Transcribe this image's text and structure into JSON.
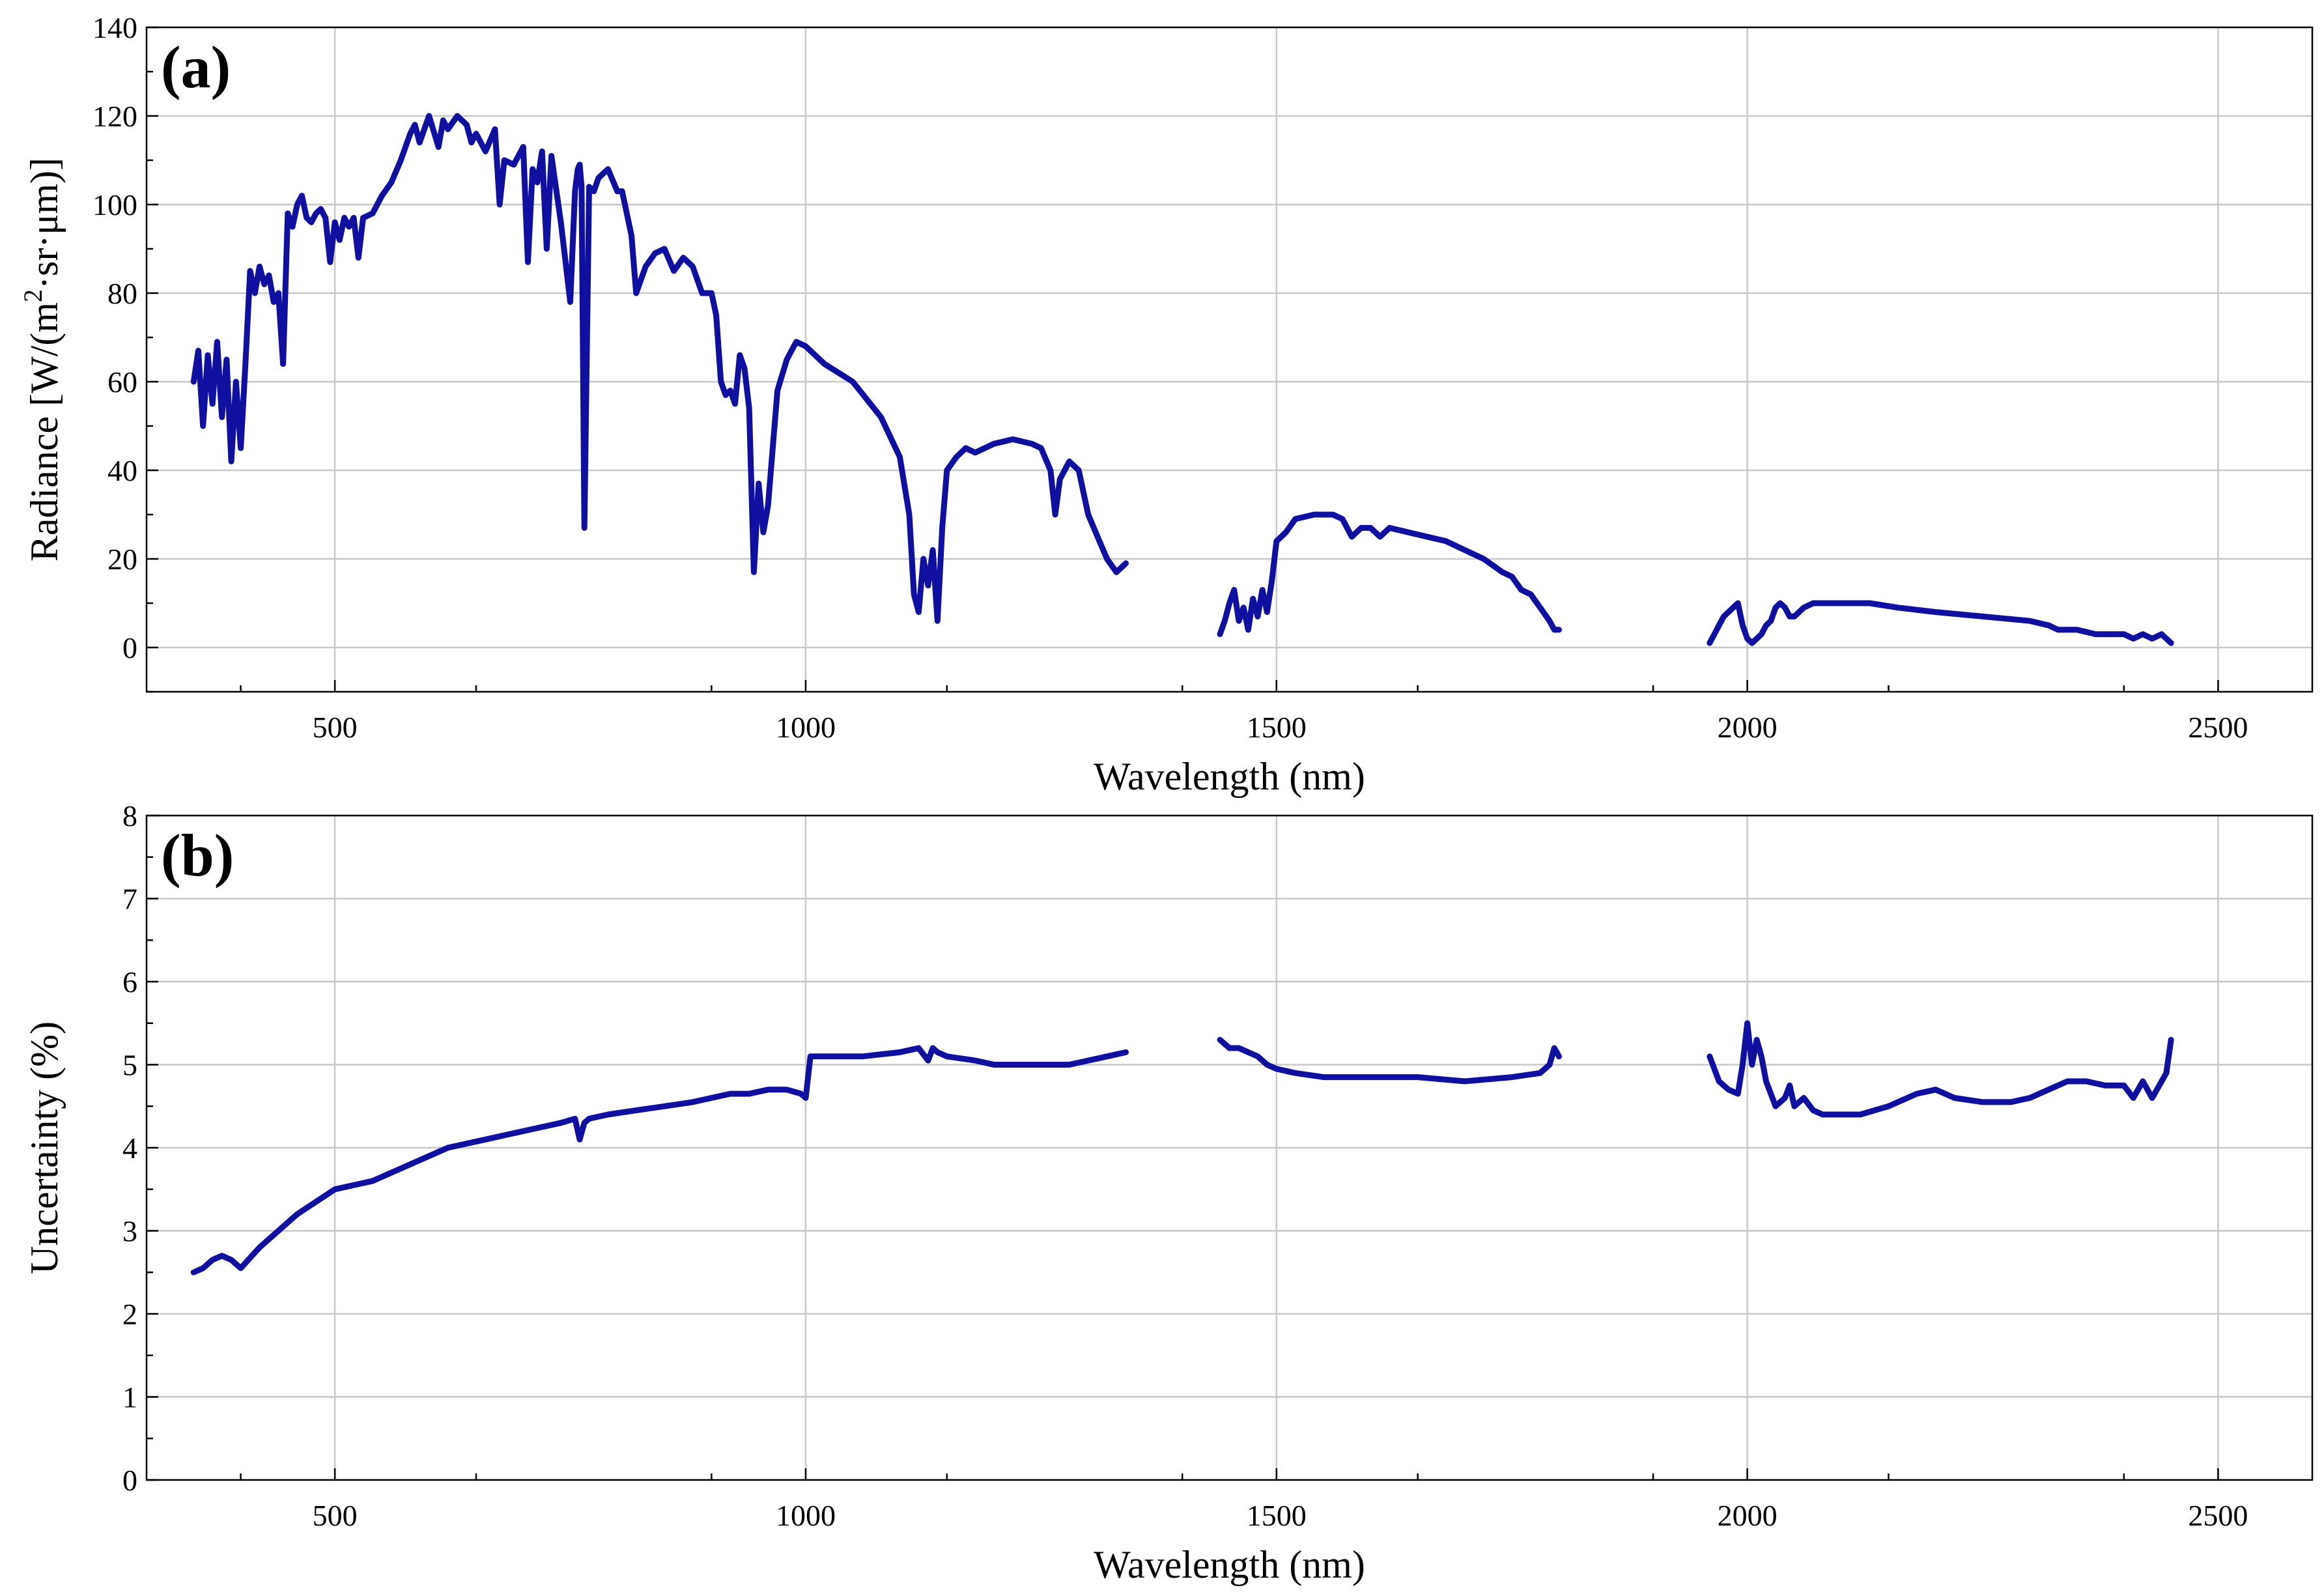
{
  "colors": {
    "series": "#1010a0",
    "grid": "#c8c8c8",
    "axis": "#000000"
  },
  "chart_data": [
    {
      "type": "line",
      "panel_label": "(a)",
      "title": "",
      "xlabel": "Wavelength (nm)",
      "ylabel": "Radiance [W/(m",
      "ylabel_sup": "2",
      "ylabel_rest": "·sr·μm)]",
      "xlim": [
        300,
        2600
      ],
      "ylim": [
        -10,
        140
      ],
      "xticks": [
        500,
        1000,
        1500,
        2000,
        2500
      ],
      "yticks": [
        0,
        20,
        40,
        60,
        80,
        100,
        120,
        140
      ],
      "grid": true,
      "series": [
        {
          "segments": [
            {
              "x": [
                350,
                355,
                360,
                365,
                370,
                375,
                380,
                385,
                390,
                395,
                400,
                405,
                410,
                415,
                420,
                425,
                430,
                435,
                440,
                445,
                450,
                455,
                460,
                465,
                470,
                475,
                480,
                485,
                490,
                495,
                500,
                505,
                510,
                515,
                520,
                525,
                530,
                540,
                550,
                560,
                570,
                580,
                585,
                590,
                600,
                610,
                615,
                620,
                630,
                640,
                645,
                650,
                660,
                670,
                675,
                680,
                690,
                700,
                705,
                710,
                715,
                720,
                725,
                730,
                740,
                750,
                755,
                758,
                760,
                762,
                765,
                770,
                775,
                780,
                790,
                800,
                805,
                810,
                815,
                820,
                830,
                840,
                850,
                860,
                870,
                880,
                890,
                900,
                905,
                910,
                915,
                920,
                925,
                930,
                935,
                940,
                945,
                950,
                955,
                960,
                970,
                980,
                990,
                1000,
                1020,
                1050,
                1080,
                1100,
                1110,
                1115,
                1120,
                1125,
                1130,
                1135,
                1140,
                1145,
                1150,
                1160,
                1170,
                1180,
                1200,
                1220,
                1240,
                1250,
                1260,
                1265,
                1270,
                1280,
                1290,
                1300,
                1310,
                1320,
                1330,
                1340
              ],
              "y": [
                60,
                67,
                50,
                66,
                55,
                69,
                52,
                65,
                42,
                60,
                45,
                64,
                85,
                80,
                86,
                82,
                84,
                78,
                80,
                64,
                98,
                95,
                100,
                102,
                97,
                96,
                98,
                99,
                97,
                87,
                96,
                92,
                97,
                95,
                97,
                88,
                97,
                98,
                102,
                105,
                110,
                116,
                118,
                114,
                120,
                113,
                119,
                117,
                120,
                118,
                114,
                116,
                112,
                117,
                100,
                110,
                109,
                113,
                87,
                108,
                105,
                112,
                90,
                111,
                96,
                78,
                103,
                108,
                109,
                104,
                27,
                104,
                103,
                106,
                108,
                103,
                103,
                98,
                93,
                80,
                86,
                89,
                90,
                85,
                88,
                86,
                80,
                80,
                75,
                60,
                57,
                58,
                55,
                66,
                63,
                54,
                17,
                37,
                26,
                32,
                58,
                65,
                69,
                68,
                64,
                60,
                52,
                43,
                30,
                12,
                8,
                20,
                14,
                22,
                6,
                27,
                40,
                43,
                45,
                44,
                46,
                47,
                46,
                45,
                40,
                30,
                38,
                42,
                40,
                30,
                25,
                20,
                17,
                19
              ]
            },
            {
              "x": [
                1440,
                1445,
                1450,
                1455,
                1460,
                1465,
                1470,
                1475,
                1480,
                1485,
                1490,
                1495,
                1500,
                1510,
                1520,
                1540,
                1560,
                1570,
                1580,
                1590,
                1600,
                1610,
                1620,
                1640,
                1660,
                1680,
                1700,
                1720,
                1740,
                1750,
                1760,
                1770,
                1780,
                1790,
                1795,
                1800
              ],
              "y": [
                3,
                6,
                10,
                13,
                6,
                9,
                4,
                11,
                7,
                13,
                8,
                15,
                24,
                26,
                29,
                30,
                30,
                29,
                25,
                27,
                27,
                25,
                27,
                26,
                25,
                24,
                22,
                20,
                17,
                16,
                13,
                12,
                9,
                6,
                4,
                4
              ]
            },
            {
              "x": [
                1960,
                1965,
                1970,
                1975,
                1980,
                1985,
                1990,
                1995,
                2000,
                2005,
                2010,
                2015,
                2020,
                2025,
                2030,
                2035,
                2040,
                2045,
                2050,
                2060,
                2070,
                2080,
                2100,
                2130,
                2160,
                2200,
                2250,
                2300,
                2320,
                2330,
                2350,
                2370,
                2400,
                2410,
                2420,
                2430,
                2440,
                2450
              ],
              "y": [
                1,
                3,
                5,
                7,
                8,
                9,
                10,
                5,
                2,
                1,
                2,
                3,
                5,
                6,
                9,
                10,
                9,
                7,
                7,
                9,
                10,
                10,
                10,
                10,
                9,
                8,
                7,
                6,
                5,
                4,
                4,
                3,
                3,
                2,
                3,
                2,
                3,
                1
              ]
            }
          ]
        }
      ]
    },
    {
      "type": "line",
      "panel_label": "(b)",
      "title": "",
      "xlabel": "Wavelength (nm)",
      "ylabel": "Uncertainty (%)",
      "xlim": [
        300,
        2600
      ],
      "ylim": [
        0,
        8
      ],
      "xticks": [
        500,
        1000,
        1500,
        2000,
        2500
      ],
      "yticks": [
        0,
        1,
        2,
        3,
        4,
        5,
        6,
        7,
        8
      ],
      "grid": true,
      "series": [
        {
          "segments": [
            {
              "x": [
                350,
                360,
                370,
                380,
                390,
                400,
                420,
                440,
                460,
                480,
                500,
                520,
                540,
                560,
                580,
                600,
                620,
                640,
                660,
                680,
                700,
                720,
                740,
                755,
                760,
                765,
                770,
                790,
                820,
                850,
                880,
                900,
                920,
                940,
                960,
                980,
                995,
                1000,
                1005,
                1030,
                1060,
                1100,
                1120,
                1130,
                1135,
                1140,
                1150,
                1180,
                1200,
                1220,
                1250,
                1280,
                1300,
                1320,
                1340
              ],
              "y": [
                2.5,
                2.55,
                2.65,
                2.7,
                2.65,
                2.55,
                2.8,
                3.0,
                3.2,
                3.35,
                3.5,
                3.55,
                3.6,
                3.7,
                3.8,
                3.9,
                4.0,
                4.05,
                4.1,
                4.15,
                4.2,
                4.25,
                4.3,
                4.35,
                4.1,
                4.3,
                4.35,
                4.4,
                4.45,
                4.5,
                4.55,
                4.6,
                4.65,
                4.65,
                4.7,
                4.7,
                4.65,
                4.6,
                5.1,
                5.1,
                5.1,
                5.15,
                5.2,
                5.05,
                5.2,
                5.15,
                5.1,
                5.05,
                5.0,
                5.0,
                5.0,
                5.0,
                5.05,
                5.1,
                5.15
              ]
            },
            {
              "x": [
                1440,
                1450,
                1460,
                1470,
                1480,
                1490,
                1500,
                1520,
                1550,
                1600,
                1650,
                1700,
                1750,
                1780,
                1790,
                1795,
                1800
              ],
              "y": [
                5.3,
                5.2,
                5.2,
                5.15,
                5.1,
                5.0,
                4.95,
                4.9,
                4.85,
                4.85,
                4.85,
                4.8,
                4.85,
                4.9,
                5.0,
                5.2,
                5.1
              ]
            },
            {
              "x": [
                1960,
                1970,
                1980,
                1990,
                1995,
                2000,
                2005,
                2010,
                2015,
                2020,
                2030,
                2040,
                2045,
                2050,
                2060,
                2070,
                2080,
                2100,
                2120,
                2150,
                2180,
                2200,
                2220,
                2250,
                2280,
                2300,
                2320,
                2340,
                2360,
                2380,
                2400,
                2410,
                2420,
                2430,
                2440,
                2445,
                2450
              ],
              "y": [
                5.1,
                4.8,
                4.7,
                4.65,
                5.0,
                5.5,
                5.0,
                5.3,
                5.1,
                4.8,
                4.5,
                4.6,
                4.75,
                4.5,
                4.6,
                4.45,
                4.4,
                4.4,
                4.4,
                4.5,
                4.65,
                4.7,
                4.6,
                4.55,
                4.55,
                4.6,
                4.7,
                4.8,
                4.8,
                4.75,
                4.75,
                4.6,
                4.8,
                4.6,
                4.8,
                4.9,
                5.3
              ]
            }
          ]
        }
      ]
    }
  ]
}
